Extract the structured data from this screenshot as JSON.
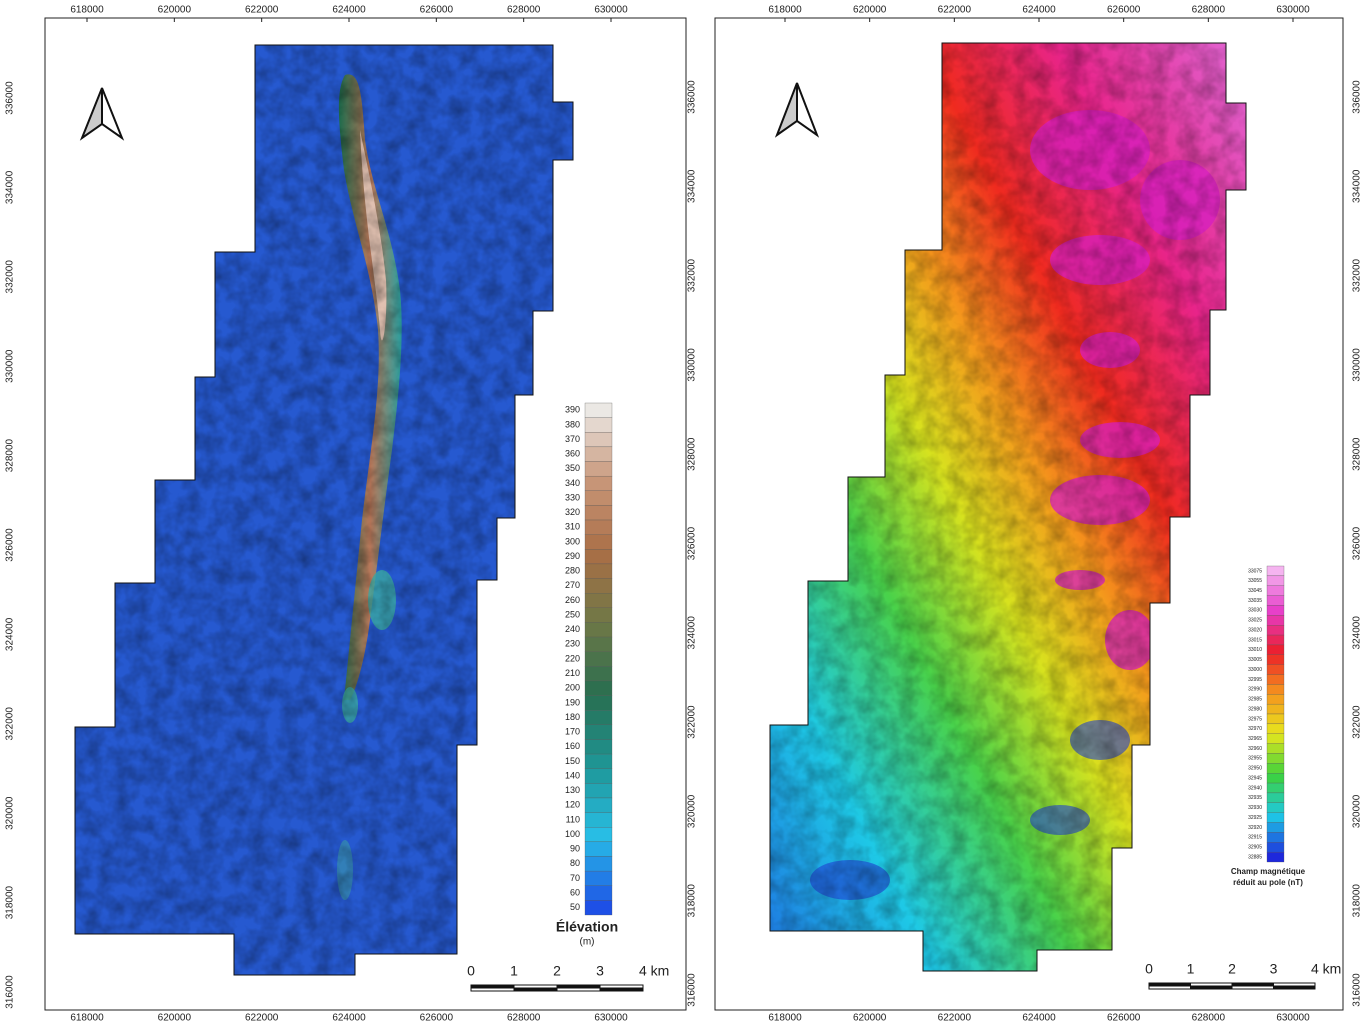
{
  "maps": [
    {
      "x_ticks": [
        618000,
        620000,
        622000,
        624000,
        626000,
        628000,
        630000
      ],
      "y_ticks": [
        316000,
        318000,
        320000,
        322000,
        324000,
        326000,
        328000,
        330000,
        332000,
        334000,
        336000
      ],
      "legend": {
        "title": "Élévation",
        "unit": "(m)",
        "labels": [
          390,
          380,
          370,
          360,
          350,
          340,
          330,
          320,
          310,
          300,
          290,
          280,
          270,
          260,
          250,
          240,
          230,
          220,
          210,
          200,
          190,
          180,
          170,
          160,
          150,
          140,
          130,
          120,
          110,
          100,
          90,
          80,
          70,
          60,
          50
        ]
      },
      "scale_bar": [
        0,
        1,
        2,
        3,
        {
          "value": 4,
          "label": "4 km"
        }
      ]
    },
    {
      "x_ticks": [
        618000,
        620000,
        622000,
        624000,
        626000,
        628000,
        630000
      ],
      "y_ticks": [
        316000,
        318000,
        320000,
        322000,
        324000,
        326000,
        328000,
        330000,
        332000,
        334000,
        336000
      ],
      "legend": {
        "title_lines": [
          "Champ magnétique",
          "réduit au pole (nT)"
        ],
        "labels": [
          33075,
          33055,
          33045,
          33035,
          33030,
          33025,
          33020,
          33015,
          33010,
          33005,
          33000,
          32995,
          32990,
          32985,
          32980,
          32975,
          32970,
          32965,
          32960,
          32955,
          32950,
          32945,
          32940,
          32935,
          32930,
          32925,
          32920,
          32915,
          32905,
          32885
        ]
      },
      "scale_bar": [
        0,
        1,
        2,
        3,
        {
          "value": 4,
          "label": "4 km"
        }
      ]
    }
  ]
}
